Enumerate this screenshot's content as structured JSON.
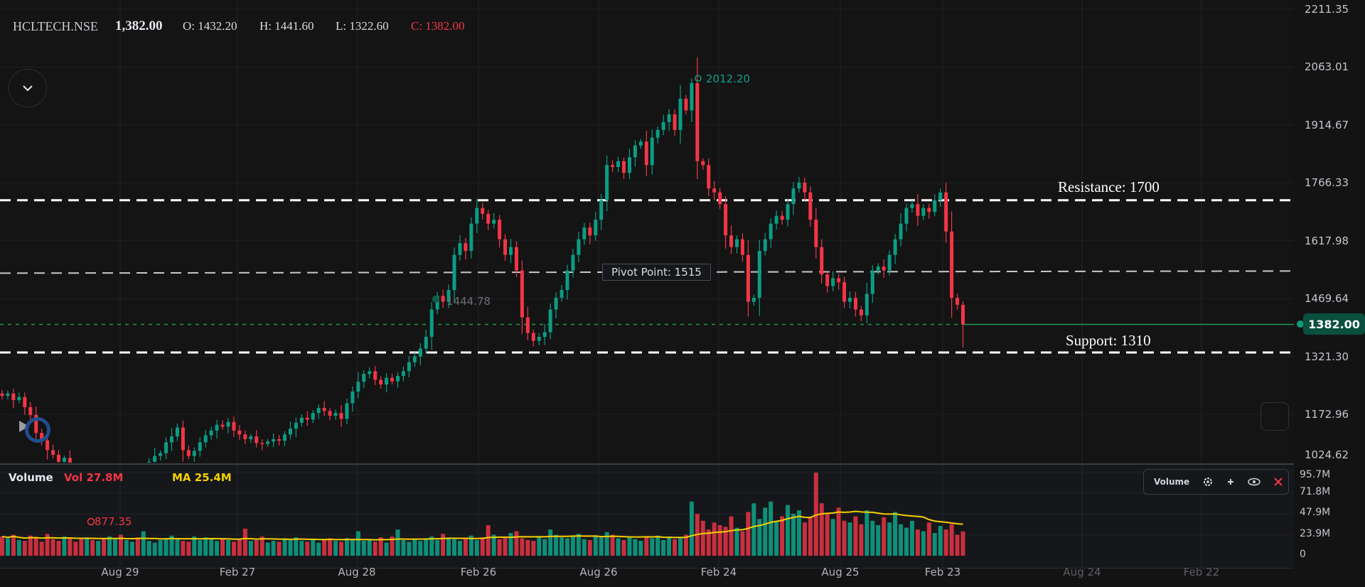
{
  "header": {
    "symbol": "HCLTECH.NSE",
    "last_price": "1,382.00",
    "open": "O: 1432.20",
    "high": "H: 1441.60",
    "low": "L: 1322.60",
    "close": "C: 1382.00"
  },
  "colors": {
    "up": "#0c9d84",
    "down": "#f23645",
    "ma": "#f5d000",
    "background": "#141414",
    "last_price_tag": "#0b4f3e"
  },
  "price_axis": {
    "labels": [
      "2211.35",
      "2063.01",
      "1914.67",
      "1766.33",
      "1617.98",
      "1469.64",
      "1321.30",
      "1172.96",
      "1024.62"
    ],
    "current_price_tag": "1382.00"
  },
  "levels": {
    "resistance": {
      "label": "Resistance: 1700",
      "value": 1700
    },
    "pivot": {
      "label": "Pivot Point: 1515",
      "value": 1515
    },
    "support": {
      "label": "Support: 1310",
      "value": 1310
    },
    "current": 1382
  },
  "markers": {
    "high": "2012.20",
    "low": "877.35",
    "mid": "1444.78"
  },
  "volume": {
    "title": "Volume",
    "vol_label": "Vol 27.8M",
    "ma_label": "MA 25.4M",
    "axis_labels": [
      "95.7M",
      "71.8M",
      "47.9M",
      "23.9M",
      "0"
    ],
    "legend": {
      "label": "Volume",
      "icons": [
        "gear-icon",
        "plus-icon",
        "eye-icon",
        "close-icon"
      ]
    }
  },
  "time_axis": {
    "labels": [
      "Aug 29",
      "Feb 27",
      "Aug 28",
      "Feb 26",
      "Aug 26",
      "Feb 24",
      "Aug 25",
      "Feb 23",
      "Aug 24",
      "Feb 22"
    ],
    "dim_from": 8
  },
  "chart_data": {
    "type": "candlestick",
    "y_range": [
      1024.62,
      2211.35
    ],
    "closes": [
      1199,
      1205,
      1188,
      1196,
      1170,
      1150,
      1104,
      1085,
      1060,
      1048,
      1030,
      1040,
      1012,
      1005,
      995,
      1002,
      990,
      998,
      985,
      992,
      1000,
      994,
      1006,
      1010,
      1002,
      1020,
      1030,
      1045,
      1052,
      1080,
      1095,
      1118,
      1060,
      1045,
      1058,
      1080,
      1098,
      1110,
      1125,
      1120,
      1132,
      1110,
      1100,
      1088,
      1095,
      1078,
      1076,
      1082,
      1088,
      1084,
      1100,
      1115,
      1130,
      1143,
      1138,
      1155,
      1168,
      1160,
      1148,
      1155,
      1140,
      1180,
      1210,
      1235,
      1255,
      1262,
      1240,
      1228,
      1245,
      1236,
      1250,
      1262,
      1285,
      1300,
      1320,
      1350,
      1420,
      1455,
      1440,
      1470,
      1560,
      1590,
      1570,
      1640,
      1680,
      1665,
      1640,
      1650,
      1600,
      1560,
      1580,
      1520,
      1400,
      1360,
      1340,
      1350,
      1362,
      1420,
      1450,
      1470,
      1520,
      1560,
      1600,
      1630,
      1610,
      1650,
      1700,
      1790,
      1785,
      1800,
      1770,
      1810,
      1840,
      1850,
      1790,
      1860,
      1880,
      1900,
      1920,
      1880,
      1960,
      1930,
      2000,
      1800,
      1790,
      1730,
      1720,
      1690,
      1610,
      1580,
      1600,
      1560,
      1440,
      1450,
      1570,
      1600,
      1640,
      1660,
      1650,
      1690,
      1730,
      1745,
      1720,
      1650,
      1580,
      1510,
      1480,
      1500,
      1490,
      1440,
      1450,
      1420,
      1405,
      1460,
      1520,
      1530,
      1520,
      1560,
      1600,
      1640,
      1680,
      1690,
      1660,
      1680,
      1670,
      1700,
      1720,
      1620,
      1450,
      1432.2,
      1382
    ],
    "last_candle": {
      "open": 1432.2,
      "high": 1441.6,
      "low": 1322.6,
      "close": 1382
    },
    "volumes_m": [
      22,
      20,
      24,
      18,
      17,
      23,
      21,
      16,
      25,
      19,
      17,
      22,
      20,
      16,
      19,
      21,
      18,
      17,
      20,
      22,
      19,
      24,
      18,
      16,
      21,
      28,
      17,
      15,
      18,
      20,
      23,
      19,
      17,
      16,
      22,
      18,
      21,
      19,
      17,
      20,
      18,
      16,
      19,
      31,
      17,
      18,
      22,
      15,
      17,
      16,
      20,
      18,
      21,
      17,
      16,
      19,
      15,
      18,
      20,
      17,
      16,
      20,
      19,
      28,
      17,
      18,
      16,
      21,
      15,
      22,
      30,
      18,
      16,
      19,
      17,
      20,
      22,
      18,
      25,
      21,
      19,
      17,
      20,
      23,
      18,
      21,
      35,
      24,
      19,
      22,
      26,
      28,
      20,
      18,
      17,
      22,
      19,
      30,
      24,
      21,
      20,
      22,
      25,
      19,
      18,
      23,
      21,
      27,
      24,
      20,
      18,
      22,
      19,
      17,
      21,
      20,
      23,
      18,
      22,
      19,
      21,
      24,
      62,
      48,
      40,
      30,
      38,
      35,
      33,
      45,
      32,
      28,
      50,
      60,
      42,
      55,
      62,
      40,
      45,
      58,
      48,
      52,
      38,
      44,
      95,
      60,
      48,
      42,
      55,
      40,
      38,
      45,
      36,
      52,
      40,
      35,
      44,
      38,
      50,
      36,
      32,
      40,
      30,
      28,
      38,
      26,
      34,
      30,
      36,
      24,
      27.8
    ],
    "volume_range": [
      0,
      95.7
    ]
  }
}
